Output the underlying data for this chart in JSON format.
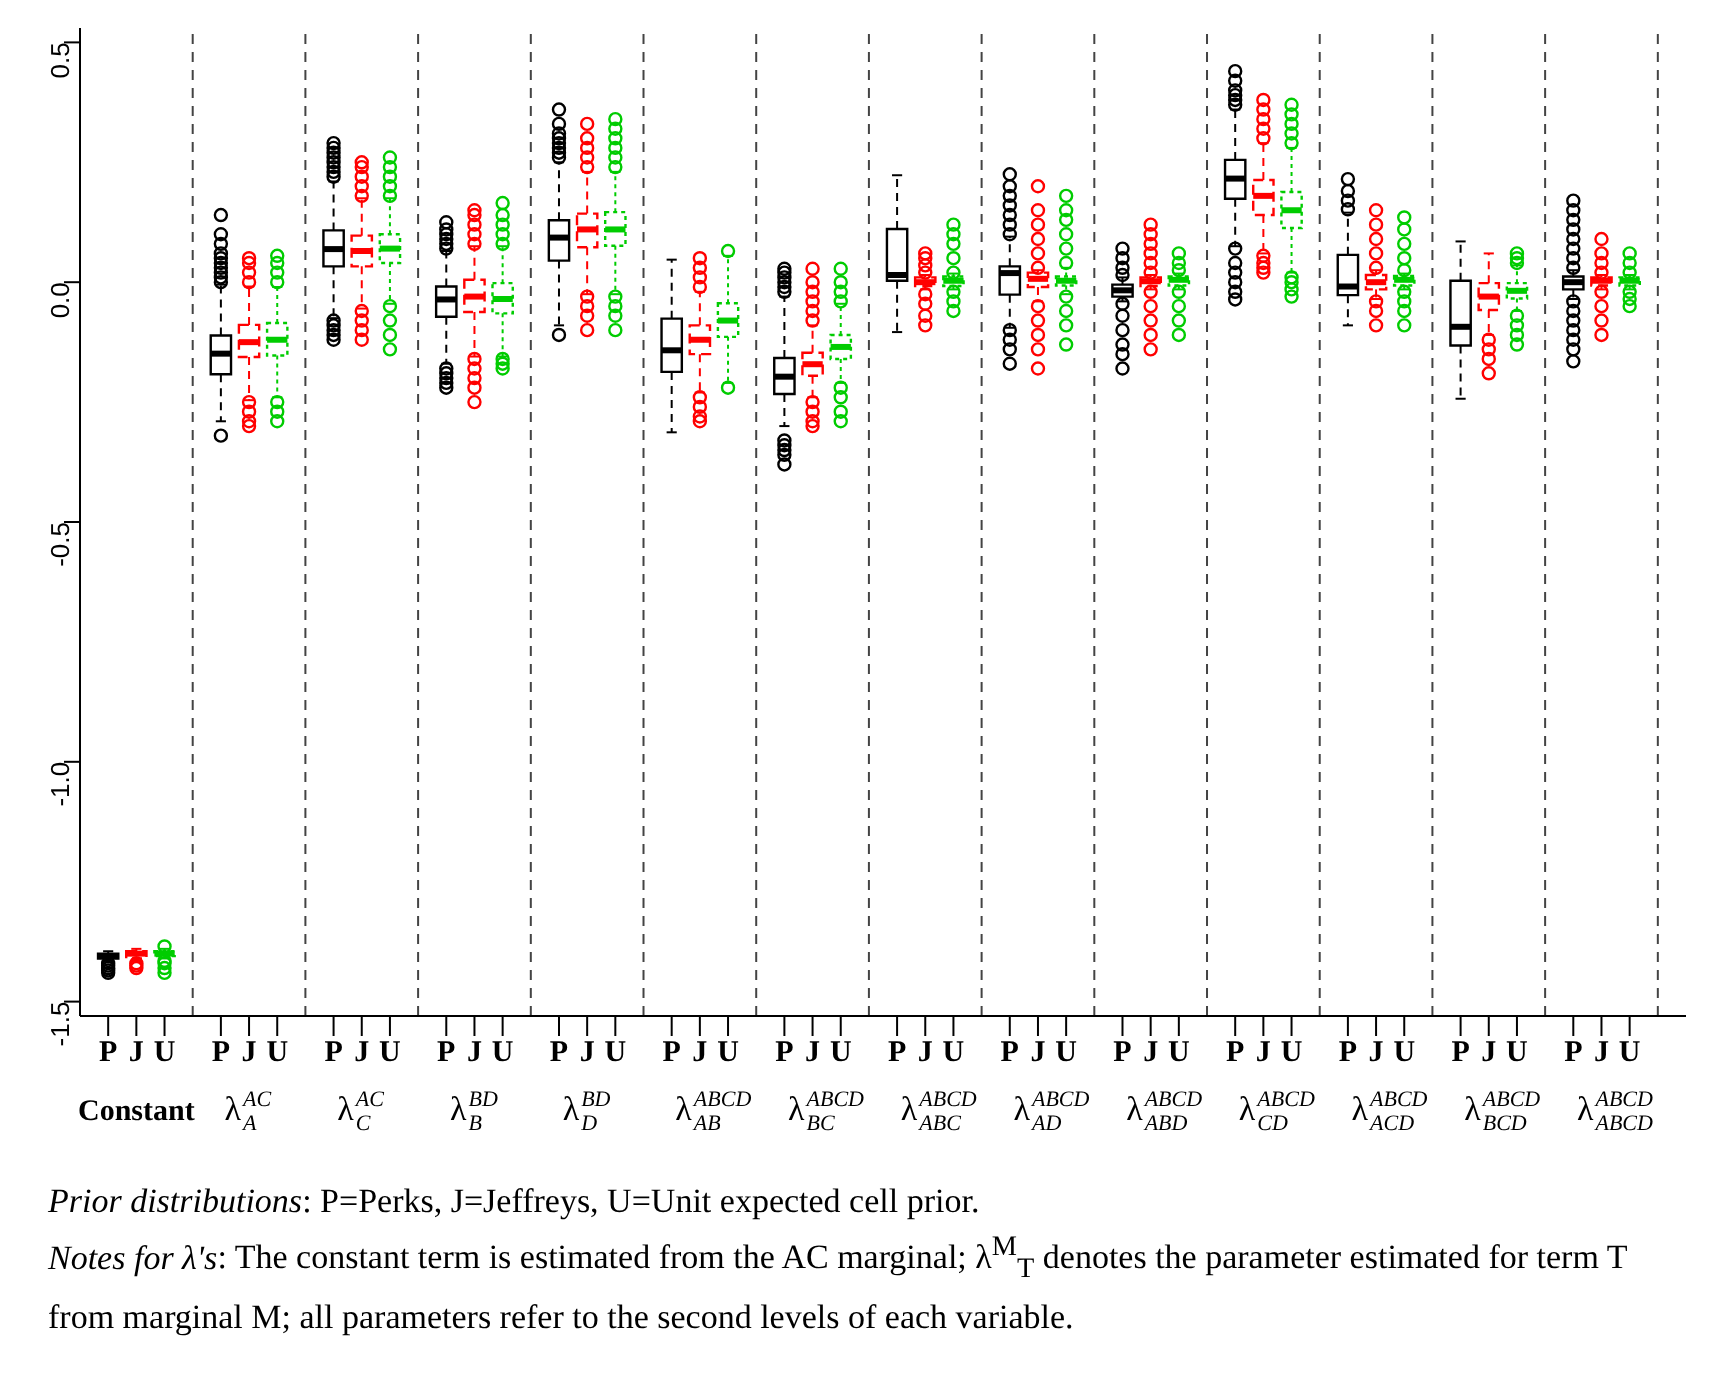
{
  "chart_data": {
    "type": "box",
    "categories": [
      "Constant",
      "λ$^{AC}$$_{A}$",
      "λ$^{AC}$$_{C}$",
      "λ$^{BD}$$_{B}$",
      "λ$^{BD}$$_{D}$",
      "λ$^{ABCD}$$_{AB}$",
      "λ$^{ABCD}$$_{BC}$",
      "λ$^{ABCD}$$_{ABC}$",
      "λ$^{ABCD}$$_{AD}$",
      "λ$^{ABCD}$$_{ABD}$",
      "λ$^{ABCD}$$_{CD}$",
      "λ$^{ABCD}$$_{ACD}$",
      "λ$^{ABCD}$$_{BCD}$",
      "λ$^{ABCD}$$_{ABCD}$"
    ],
    "legend": "bottom",
    "ylim": [
      -1.53,
      0.53
    ],
    "yticks": [
      -1.5,
      {
        "value": -1.0,
        "label": "-1.0"
      },
      -0.5,
      {
        "value": 0,
        "label": "0.0"
      },
      0.5
    ],
    "grid": "x",
    "marker": "circle",
    "series": [
      {
        "name": "P",
        "color": "#000000",
        "line_style": "solid",
        "boxes": [
          {
            "low": -1.415,
            "q1": -1.41,
            "median": -1.405,
            "q3": -1.4,
            "high": -1.395,
            "outliers": [
              -1.42,
              -1.425,
              -1.43,
              -1.435,
              -1.44
            ]
          },
          {
            "low": -0.29,
            "q1": -0.192,
            "median": -0.149,
            "q3": -0.111,
            "high": -0.005,
            "outliers": [
              0.0,
              0.01,
              0.02,
              0.03,
              0.04,
              0.05,
              0.06,
              0.08,
              0.1,
              0.14,
              -0.32
            ]
          },
          {
            "low": -0.075,
            "q1": 0.033,
            "median": 0.069,
            "q3": 0.108,
            "high": 0.21,
            "outliers": [
              0.22,
              0.23,
              0.24,
              0.25,
              0.26,
              0.27,
              0.28,
              0.29,
              -0.08,
              -0.09,
              -0.1,
              -0.11,
              -0.12
            ]
          },
          {
            "low": -0.17,
            "q1": -0.072,
            "median": -0.036,
            "q3": -0.009,
            "high": 0.065,
            "outliers": [
              0.07,
              0.08,
              0.09,
              0.1,
              0.11,
              0.125,
              -0.18,
              -0.19,
              -0.2,
              -0.21,
              -0.22
            ]
          },
          {
            "low": -0.09,
            "q1": 0.045,
            "median": 0.093,
            "q3": 0.129,
            "high": 0.25,
            "outliers": [
              0.26,
              0.27,
              0.28,
              0.29,
              0.3,
              0.31,
              0.33,
              0.36,
              -0.11
            ]
          },
          {
            "low": -0.313,
            "q1": -0.187,
            "median": -0.142,
            "q3": -0.076,
            "high": 0.047
          },
          {
            "low": -0.3,
            "q1": -0.233,
            "median": -0.197,
            "q3": -0.158,
            "high": -0.03,
            "outliers": [
              -0.02,
              -0.01,
              0.0,
              0.01,
              0.02,
              0.028,
              -0.33,
              -0.34,
              -0.35,
              -0.36,
              -0.38
            ]
          },
          {
            "low": -0.104,
            "q1": 0.003,
            "median": 0.015,
            "q3": 0.111,
            "high": 0.223
          },
          {
            "low": -0.095,
            "q1": -0.026,
            "median": 0.019,
            "q3": 0.033,
            "high": 0.095,
            "outliers": [
              0.1,
              0.12,
              0.14,
              0.16,
              0.18,
              0.2,
              0.225,
              -0.1,
              -0.12,
              -0.14,
              -0.17
            ]
          },
          {
            "low": -0.04,
            "q1": -0.03,
            "median": -0.017,
            "q3": -0.005,
            "high": 0.01,
            "outliers": [
              0.015,
              0.03,
              0.05,
              0.07,
              -0.045,
              -0.07,
              -0.1,
              -0.13,
              -0.15,
              -0.18
            ]
          },
          {
            "low": 0.075,
            "q1": 0.174,
            "median": 0.216,
            "q3": 0.255,
            "high": 0.36,
            "outliers": [
              0.37,
              0.38,
              0.39,
              0.4,
              0.42,
              0.44,
              0.07,
              0.04,
              0.02,
              0.0,
              -0.02,
              -0.036
            ]
          },
          {
            "low": -0.09,
            "q1": -0.027,
            "median": -0.009,
            "q3": 0.057,
            "high": 0.145,
            "outliers": [
              0.152,
              0.17,
              0.19,
              0.215
            ]
          },
          {
            "low": -0.243,
            "q1": -0.132,
            "median": -0.093,
            "q3": 0.003,
            "high": 0.085
          },
          {
            "low": -0.035,
            "q1": -0.015,
            "median": 0.0,
            "q3": 0.012,
            "high": 0.025,
            "outliers": [
              0.03,
              0.05,
              0.07,
              0.09,
              0.11,
              0.13,
              0.15,
              0.17,
              -0.04,
              -0.06,
              -0.08,
              -0.1,
              -0.12,
              -0.14,
              -0.165
            ]
          }
        ]
      },
      {
        "name": "J",
        "color": "#ff0000",
        "line_style": "dashed",
        "boxes": [
          {
            "low": -1.415,
            "q1": -1.41,
            "median": -1.4,
            "q3": -1.395,
            "high": -1.39,
            "outliers": [
              -1.42,
              -1.425,
              -1.43
            ]
          },
          {
            "low": -0.246,
            "q1": -0.156,
            "median": -0.125,
            "q3": -0.089,
            "high": -0.009,
            "outliers": [
              0.0,
              0.02,
              0.04,
              0.05,
              -0.25,
              -0.27,
              -0.29,
              -0.3
            ]
          },
          {
            "low": -0.055,
            "q1": 0.033,
            "median": 0.065,
            "q3": 0.097,
            "high": 0.175,
            "outliers": [
              0.18,
              0.2,
              0.22,
              0.24,
              0.25,
              -0.06,
              -0.08,
              -0.1,
              -0.12
            ]
          },
          {
            "low": -0.155,
            "q1": -0.062,
            "median": -0.03,
            "q3": 0.005,
            "high": 0.075,
            "outliers": [
              0.08,
              0.1,
              0.12,
              0.14,
              0.15,
              -0.16,
              -0.18,
              -0.2,
              -0.22,
              -0.25
            ]
          },
          {
            "low": -0.025,
            "q1": 0.073,
            "median": 0.11,
            "q3": 0.143,
            "high": 0.23,
            "outliers": [
              0.24,
              0.26,
              0.28,
              0.3,
              0.33,
              -0.03,
              -0.05,
              -0.07,
              -0.1
            ]
          },
          {
            "low": -0.23,
            "q1": -0.15,
            "median": -0.12,
            "q3": -0.09,
            "high": -0.02,
            "outliers": [
              -0.01,
              0.01,
              0.03,
              0.05,
              -0.24,
              -0.26,
              -0.28,
              -0.29
            ]
          },
          {
            "low": -0.24,
            "q1": -0.195,
            "median": -0.171,
            "q3": -0.147,
            "high": -0.09,
            "outliers": [
              -0.08,
              -0.06,
              -0.04,
              -0.02,
              0.0,
              0.028,
              -0.25,
              -0.27,
              -0.29,
              -0.3
            ]
          },
          {
            "low": -0.015,
            "q1": -0.008,
            "median": 0.0,
            "q3": 0.01,
            "high": 0.015,
            "outliers": [
              0.02,
              0.035,
              0.05,
              0.06,
              -0.025,
              -0.045,
              -0.07,
              -0.09
            ]
          },
          {
            "low": -0.04,
            "q1": -0.01,
            "median": 0.007,
            "q3": 0.02,
            "high": 0.025,
            "outliers": [
              0.03,
              0.06,
              0.09,
              0.12,
              0.15,
              0.2,
              -0.05,
              -0.08,
              -0.11,
              -0.14,
              -0.18
            ]
          },
          {
            "low": -0.015,
            "q1": -0.008,
            "median": 0.002,
            "q3": 0.01,
            "high": 0.015,
            "outliers": [
              0.02,
              0.04,
              0.06,
              0.08,
              0.1,
              0.12,
              -0.02,
              -0.05,
              -0.08,
              -0.11,
              -0.14
            ]
          },
          {
            "low": 0.06,
            "q1": 0.14,
            "median": 0.18,
            "q3": 0.213,
            "high": 0.29,
            "outliers": [
              0.3,
              0.32,
              0.34,
              0.36,
              0.38,
              0.055,
              0.04,
              0.03,
              0.02
            ]
          },
          {
            "low": -0.035,
            "q1": -0.015,
            "median": 0.0,
            "q3": 0.015,
            "high": 0.025,
            "outliers": [
              0.03,
              0.06,
              0.09,
              0.12,
              0.15,
              -0.04,
              -0.06,
              -0.09
            ]
          },
          {
            "low": -0.11,
            "q1": -0.058,
            "median": -0.03,
            "q3": -0.002,
            "high": 0.06,
            "outliers": [
              -0.12,
              -0.14,
              -0.16,
              -0.19
            ]
          },
          {
            "low": -0.015,
            "q1": -0.007,
            "median": 0.003,
            "q3": 0.01,
            "high": 0.015,
            "outliers": [
              0.02,
              0.04,
              0.06,
              0.09,
              -0.02,
              -0.05,
              -0.08,
              -0.11
            ]
          }
        ]
      },
      {
        "name": "U",
        "color": "#00cc00",
        "line_style": "dotted",
        "boxes": [
          {
            "low": -1.41,
            "q1": -1.405,
            "median": -1.4,
            "q3": -1.395,
            "high": -1.39,
            "outliers": [
              -1.385,
              -1.415,
              -1.42,
              -1.43,
              -1.44
            ]
          },
          {
            "low": -0.24,
            "q1": -0.153,
            "median": -0.12,
            "q3": -0.085,
            "high": -0.01,
            "outliers": [
              0.0,
              0.02,
              0.04,
              0.055,
              -0.25,
              -0.27,
              -0.29
            ]
          },
          {
            "low": -0.045,
            "q1": 0.04,
            "median": 0.07,
            "q3": 0.1,
            "high": 0.175,
            "outliers": [
              0.18,
              0.2,
              0.22,
              0.24,
              0.26,
              -0.05,
              -0.08,
              -0.11,
              -0.14
            ]
          },
          {
            "low": -0.155,
            "q1": -0.065,
            "median": -0.035,
            "q3": -0.002,
            "high": 0.075,
            "outliers": [
              0.08,
              0.1,
              0.12,
              0.14,
              0.165,
              -0.16,
              -0.17,
              -0.18
            ]
          },
          {
            "low": -0.025,
            "q1": 0.076,
            "median": 0.11,
            "q3": 0.146,
            "high": 0.23,
            "outliers": [
              0.24,
              0.26,
              0.28,
              0.3,
              0.32,
              0.34,
              -0.03,
              -0.05,
              -0.07,
              -0.1
            ]
          },
          {
            "low": -0.21,
            "q1": -0.114,
            "median": -0.08,
            "q3": -0.044,
            "high": 0.055,
            "outliers": [
              0.065,
              -0.22
            ]
          },
          {
            "low": -0.21,
            "q1": -0.16,
            "median": -0.135,
            "q3": -0.11,
            "high": -0.045,
            "outliers": [
              -0.04,
              -0.02,
              0.0,
              0.028,
              -0.22,
              -0.24,
              -0.27,
              -0.29
            ]
          },
          {
            "low": -0.015,
            "q1": -0.008,
            "median": 0.003,
            "q3": 0.012,
            "high": 0.018,
            "outliers": [
              0.02,
              0.05,
              0.08,
              0.1,
              0.12,
              -0.02,
              -0.04,
              -0.06
            ]
          },
          {
            "low": -0.025,
            "q1": -0.007,
            "median": 0.003,
            "q3": 0.012,
            "high": 0.03,
            "outliers": [
              0.04,
              0.07,
              0.1,
              0.13,
              0.15,
              0.18,
              -0.03,
              -0.06,
              -0.09,
              -0.13
            ]
          },
          {
            "low": -0.015,
            "q1": -0.007,
            "median": 0.005,
            "q3": 0.012,
            "high": 0.018,
            "outliers": [
              0.025,
              0.04,
              0.06,
              -0.02,
              -0.05,
              -0.08,
              -0.11
            ]
          },
          {
            "low": 0.02,
            "q1": 0.113,
            "median": 0.15,
            "q3": 0.188,
            "high": 0.28,
            "outliers": [
              0.29,
              0.31,
              0.33,
              0.35,
              0.37,
              0.01,
              0.0,
              -0.015,
              -0.03
            ]
          },
          {
            "low": -0.015,
            "q1": -0.007,
            "median": 0.005,
            "q3": 0.013,
            "high": 0.018,
            "outliers": [
              0.025,
              0.05,
              0.08,
              0.11,
              0.135,
              -0.02,
              -0.04,
              -0.06,
              -0.09
            ]
          },
          {
            "low": -0.06,
            "q1": -0.034,
            "median": -0.018,
            "q3": -0.002,
            "high": 0.035,
            "outliers": [
              0.04,
              0.05,
              0.06,
              -0.07,
              -0.09,
              -0.11,
              -0.13
            ]
          },
          {
            "low": -0.015,
            "q1": -0.007,
            "median": 0.003,
            "q3": 0.01,
            "high": 0.015,
            "outliers": [
              0.02,
              0.04,
              0.06,
              -0.02,
              -0.035,
              -0.05
            ]
          }
        ]
      }
    ],
    "annotations": [
      "Prior distributions: P=Perks, J=Jeffreys, U=Unit expected cell prior.",
      "Notes for λ's: The constant term is estimated from the AC marginal; λ$^{M}$$_{T}$ denotes the parameter estimated for term T from marginal M; all parameters refer to the second levels of each variable."
    ]
  }
}
